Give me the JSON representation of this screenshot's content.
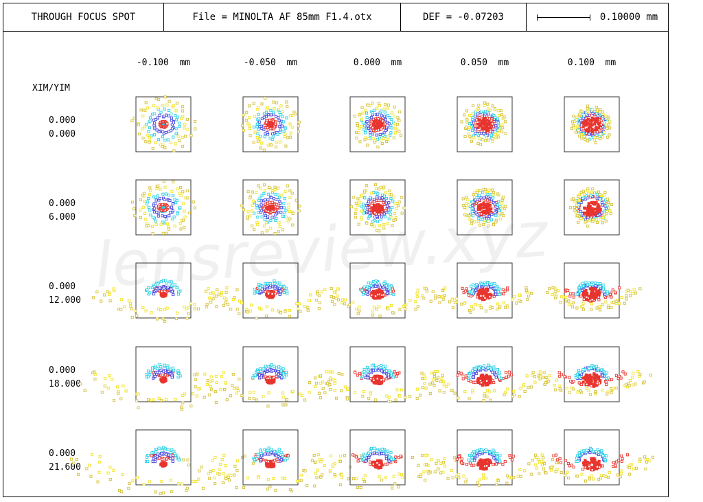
{
  "header": {
    "title": "THROUGH FOCUS SPOT",
    "file": "File = MINOLTA AF 85mm F1.4.otx",
    "def": "DEF = -0.07203",
    "scale": "0.10000 mm"
  },
  "watermark": "lensreview.xyz",
  "chart_data": {
    "type": "scatter",
    "title": "THROUGH FOCUS SPOT",
    "row_header": "XIM/YIM",
    "focus_labels": [
      "-0.100  mm",
      "-0.050  mm",
      "0.000  mm",
      "0.050  mm",
      "0.100  mm"
    ],
    "focus_values_mm": [
      -0.1,
      -0.05,
      0.0,
      0.05,
      0.1
    ],
    "field_labels": [
      [
        "0.000",
        "0.000"
      ],
      [
        "0.000",
        "6.000"
      ],
      [
        "0.000",
        "12.000"
      ],
      [
        "0.000",
        "18.000"
      ],
      [
        "0.000",
        "21.600"
      ]
    ],
    "field_yim": [
      0.0,
      6.0,
      12.0,
      18.0,
      21.6
    ],
    "box_size_mm": 0.1,
    "wavelength_colors": [
      "#e8352f",
      "#4a4ae0",
      "#28d0e6",
      "#f2e21c",
      "#d4c038"
    ]
  }
}
